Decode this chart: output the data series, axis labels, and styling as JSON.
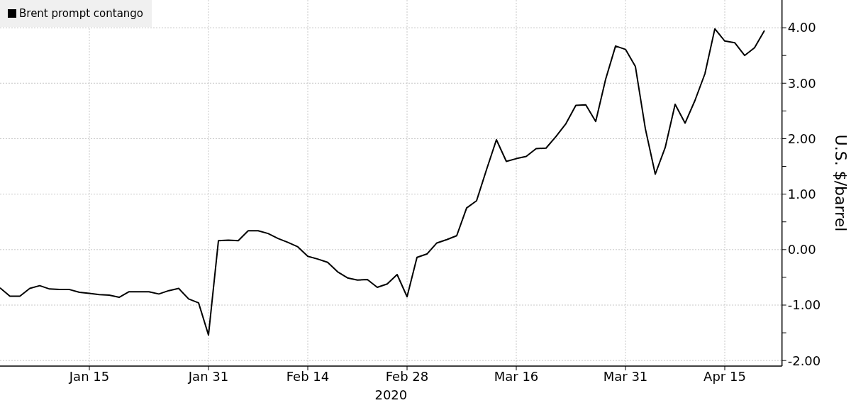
{
  "chart_data": {
    "type": "line",
    "xlabel": "2020",
    "ylabel": "U.S. $/barrel",
    "categories": [
      null,
      null,
      null,
      null,
      null,
      null,
      null,
      null,
      null,
      "Jan 15",
      null,
      null,
      null,
      null,
      null,
      null,
      null,
      null,
      null,
      null,
      null,
      "Jan 31",
      null,
      null,
      null,
      null,
      null,
      null,
      null,
      null,
      null,
      "Feb 14",
      null,
      null,
      null,
      null,
      null,
      null,
      null,
      null,
      null,
      "Feb 28",
      null,
      null,
      null,
      null,
      null,
      null,
      null,
      null,
      null,
      null,
      "Mar 16",
      null,
      null,
      null,
      null,
      null,
      null,
      null,
      null,
      null,
      null,
      "Mar 31",
      null,
      null,
      null,
      null,
      null,
      null,
      null,
      null,
      null,
      "Apr 15",
      null,
      null,
      null,
      null
    ],
    "series": [
      {
        "name": "Brent prompt contango",
        "color": "#000000",
        "values": [
          -0.69,
          -0.84,
          -0.84,
          -0.7,
          -0.65,
          -0.71,
          -0.72,
          -0.72,
          -0.77,
          -0.79,
          -0.81,
          -0.82,
          -0.86,
          -0.76,
          -0.76,
          -0.76,
          -0.8,
          -0.74,
          -0.7,
          -0.89,
          -0.96,
          -1.54,
          0.16,
          0.17,
          0.16,
          0.34,
          0.34,
          0.29,
          0.2,
          0.13,
          0.05,
          -0.12,
          -0.17,
          -0.23,
          -0.4,
          -0.51,
          -0.55,
          -0.54,
          -0.68,
          -0.62,
          -0.45,
          -0.85,
          -0.14,
          -0.08,
          0.12,
          0.18,
          0.25,
          0.75,
          0.88,
          1.44,
          1.98,
          1.59,
          1.64,
          1.68,
          1.82,
          1.83,
          2.04,
          2.27,
          2.6,
          2.61,
          2.31,
          3.07,
          3.67,
          3.61,
          3.3,
          2.18,
          1.36,
          1.84,
          2.62,
          2.28,
          2.69,
          3.17,
          3.98,
          3.76,
          3.73,
          3.5,
          3.64,
          3.95
        ]
      }
    ],
    "ylim": [
      -2.1,
      4.5
    ],
    "yticks": [
      {
        "value": -2,
        "label": "-2.00"
      },
      {
        "value": -1.5,
        "label": null
      },
      {
        "value": -1,
        "label": "-1.00"
      },
      {
        "value": -0.5,
        "label": null
      },
      {
        "value": 0,
        "label": "0.00"
      },
      {
        "value": 0.5,
        "label": null
      },
      {
        "value": 1,
        "label": "1.00"
      },
      {
        "value": 1.5,
        "label": null
      },
      {
        "value": 2,
        "label": "2.00"
      },
      {
        "value": 2.5,
        "label": null
      },
      {
        "value": 3,
        "label": "3.00"
      },
      {
        "value": 3.5,
        "label": null
      },
      {
        "value": 4,
        "label": "4.00"
      }
    ],
    "grid": true,
    "legend": "top left",
    "marker": "none",
    "line_style": "solid"
  }
}
